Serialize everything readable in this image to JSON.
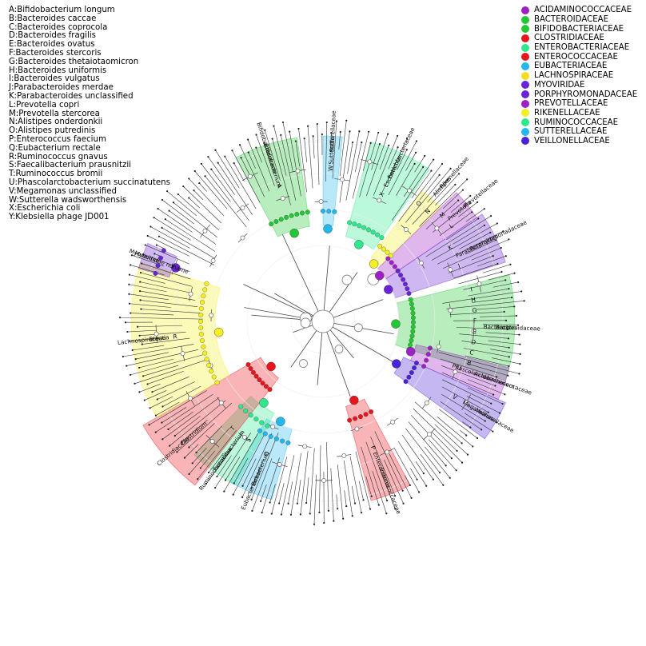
{
  "species_key": [
    "A:Bifidobacterium longum",
    "B:Bacteroides caccae",
    "C:Bacteroides coprocola",
    "D:Bacteroides fragilis",
    "E:Bacteroides ovatus",
    "F:Bacteroides stercoris",
    "G:Bacteroides thetaiotaomicron",
    "H:Bacteroides uniformis",
    "I:Bacteroides vulgatus",
    "J:Parabacteroides merdae",
    "K:Parabacteroides unclassified",
    "L:Prevotella copri",
    "M:Prevotella stercorea",
    "N:Alistipes onderdonkii",
    "O:Alistipes putredinis",
    "P:Enterococcus faecium",
    "Q:Eubacterium rectale",
    "R:Ruminococcus gnavus",
    "S:Faecalibacterium prausnitzii",
    "T:Ruminococcus bromii",
    "U:Phascolarctobacterium succinatutens",
    "V:Megamonas unclassified",
    "W:Sutterella wadsworthensis",
    "X:Escherichia coli",
    "Y:Klebsiella phage JD001"
  ],
  "family_legend": [
    {
      "label": "ACIDAMINOCOCCACEAE",
      "color": "#a020c8"
    },
    {
      "label": "BACTEROIDACEAE",
      "color": "#22c833"
    },
    {
      "label": "BIFIDOBACTERIACEAE",
      "color": "#22c833"
    },
    {
      "label": "CLOSTRIDIACEAE",
      "color": "#e8151c"
    },
    {
      "label": "ENTEROBACTERIACEAE",
      "color": "#2ee88d"
    },
    {
      "label": "ENTEROCOCCACEAE",
      "color": "#e8151c"
    },
    {
      "label": "EUBACTERIACEAE",
      "color": "#22b8ec"
    },
    {
      "label": "LACHNOSPIRACEAE",
      "color": "#f5dc22"
    },
    {
      "label": "MYOVIRIDAE",
      "color": "#6a22d8"
    },
    {
      "label": "PORPHYROMONADACEAE",
      "color": "#6a22d8"
    },
    {
      "label": "PREVOTELLACEAE",
      "color": "#a020c8"
    },
    {
      "label": "RIKENELLACEAE",
      "color": "#f5ee22"
    },
    {
      "label": "RUMINOCOCCACEAE",
      "color": "#2ee88d"
    },
    {
      "label": "SUTTERELLACEAE",
      "color": "#22b8ec"
    },
    {
      "label": "VEILLONELLACEAE",
      "color": "#4a22d8"
    }
  ],
  "clades": [
    {
      "id": "bifido",
      "family": "Bifidobacteriaceae",
      "genus": "Bifidobacterium",
      "letters": [
        "A"
      ],
      "color": "#22c833"
    },
    {
      "id": "sutter",
      "family": "Sutterellaceae",
      "genus": "Sutterella",
      "letters": [
        "W"
      ],
      "color": "#22b8ec"
    },
    {
      "id": "entero",
      "family": "Enterobacteriaceae",
      "genus": "Escherichia",
      "letters": [
        "X"
      ],
      "color": "#2ee88d"
    },
    {
      "id": "riken",
      "family": "Rikenellaceae",
      "genus": "Alistipes",
      "letters": [
        "O",
        "N"
      ],
      "color": "#f5ee22"
    },
    {
      "id": "prevo",
      "family": "Prevotellaceae",
      "genus": "Prevotella",
      "letters": [
        "M",
        "L"
      ],
      "color": "#a020c8"
    },
    {
      "id": "porph",
      "family": "Porphyromonadaceae",
      "genus": "Parabacteroides",
      "letters": [
        "K",
        "J"
      ],
      "color": "#6a22d8"
    },
    {
      "id": "bacter",
      "family": "Bacteroidaceae",
      "genus": "Bacteroides",
      "letters": [
        "I",
        "H",
        "G",
        "F",
        "E",
        "D",
        "C",
        "B"
      ],
      "color": "#22c833"
    },
    {
      "id": "acid",
      "family": "Acidaminococcaceae",
      "genus": "Phascolarctobacterium",
      "letters": [
        "U"
      ],
      "color": "#a020c8"
    },
    {
      "id": "veill",
      "family": "Veillonellaceae",
      "genus": "Megamonas",
      "letters": [
        "V"
      ],
      "color": "#4a22d8"
    },
    {
      "id": "enteroc",
      "family": "Enterococcaceae",
      "genus": "Enterococcus",
      "letters": [
        "P"
      ],
      "color": "#e8151c"
    },
    {
      "id": "eubac",
      "family": "Eubacteriaceae",
      "genus": "Eubacterium",
      "letters": [
        "Q"
      ],
      "color": "#22b8ec"
    },
    {
      "id": "rumino",
      "family": "Ruminococcaceae",
      "genus": "Faecalibacterium",
      "letters": [
        "S",
        "T"
      ],
      "color": "#2ee88d"
    },
    {
      "id": "clost",
      "family": "Clostridiaceae",
      "genus": "Clostridium",
      "letters": [],
      "color": "#e8151c"
    },
    {
      "id": "lachno",
      "family": "Lachnospiraceae",
      "genus": "Blautia",
      "letters": [
        "R"
      ],
      "color": "#f5ee22"
    },
    {
      "id": "myo",
      "family": "Myoviridae",
      "genus": "Myoviridae noname",
      "letters": [
        "Y"
      ],
      "color": "#6a22d8"
    }
  ]
}
